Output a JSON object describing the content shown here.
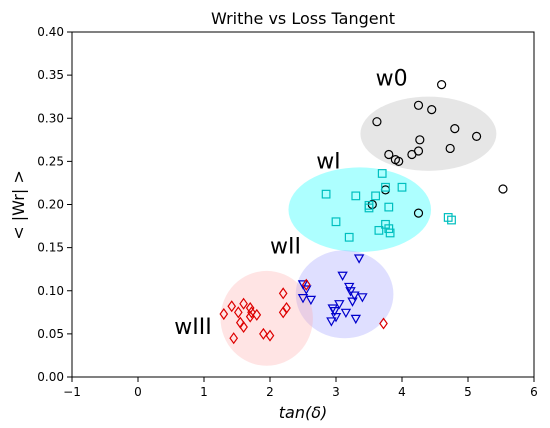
{
  "chart_data": {
    "type": "scatter",
    "title": "Writhe vs Loss Tangent",
    "xlabel": "tan(δ)",
    "ylabel": "< |Wr| >",
    "xlim": [
      -1,
      6
    ],
    "ylim": [
      0.0,
      0.4
    ],
    "xticks": [
      "−1",
      "0",
      "1",
      "2",
      "3",
      "4",
      "5",
      "6"
    ],
    "yticks": [
      "0.00",
      "0.05",
      "0.10",
      "0.15",
      "0.20",
      "0.25",
      "0.30",
      "0.35",
      "0.40"
    ],
    "grid": false,
    "series": [
      {
        "label": "w0",
        "marker": "circle",
        "color": "#000000",
        "region_color": "#b0b0b0",
        "region": {
          "cx": 4.4,
          "cy": 0.282,
          "rx": 1.03,
          "ry": 0.043
        },
        "label_pos": {
          "x": 3.6,
          "y": 0.338
        },
        "x": [
          4.6,
          4.25,
          4.45,
          3.62,
          4.8,
          5.13,
          4.27,
          4.73,
          3.8,
          3.9,
          3.95,
          4.15,
          4.25,
          5.53,
          3.75,
          3.55,
          4.25
        ],
        "y": [
          0.339,
          0.315,
          0.31,
          0.296,
          0.288,
          0.279,
          0.275,
          0.265,
          0.258,
          0.252,
          0.25,
          0.258,
          0.262,
          0.218,
          0.217,
          0.2,
          0.19
        ]
      },
      {
        "label": "wI",
        "marker": "square",
        "color": "#00bfbf",
        "region_color": "#00ffff",
        "region": {
          "cx": 3.36,
          "cy": 0.194,
          "rx": 1.08,
          "ry": 0.049
        },
        "label_pos": {
          "x": 2.7,
          "y": 0.242
        },
        "x": [
          3.7,
          3.75,
          2.85,
          3.3,
          3.6,
          4.0,
          3.5,
          3.8,
          3.5,
          3.0,
          4.7,
          4.75,
          3.75,
          3.65,
          3.8,
          3.82,
          3.2
        ],
        "y": [
          0.236,
          0.22,
          0.212,
          0.21,
          0.21,
          0.22,
          0.199,
          0.197,
          0.196,
          0.18,
          0.185,
          0.182,
          0.177,
          0.17,
          0.172,
          0.167,
          0.162
        ]
      },
      {
        "label": "wII",
        "marker": "triangle-down",
        "color": "#0000cc",
        "region_color": "#9b9bff",
        "region": {
          "cx": 3.13,
          "cy": 0.096,
          "rx": 0.74,
          "ry": 0.051
        },
        "label_pos": {
          "x": 2.0,
          "y": 0.143
        },
        "x": [
          3.35,
          3.1,
          2.5,
          2.55,
          3.2,
          3.22,
          3.28,
          2.5,
          2.62,
          3.4,
          3.05,
          3.25,
          2.95,
          2.98,
          3.15,
          3.3,
          3.0,
          2.93
        ],
        "y": [
          0.138,
          0.118,
          0.108,
          0.102,
          0.105,
          0.1,
          0.095,
          0.092,
          0.09,
          0.093,
          0.085,
          0.088,
          0.08,
          0.077,
          0.075,
          0.068,
          0.07,
          0.065
        ]
      },
      {
        "label": "wIII",
        "marker": "diamond",
        "color": "#dd0000",
        "region_color": "#ffaaaa",
        "region": {
          "cx": 1.95,
          "cy": 0.068,
          "rx": 0.7,
          "ry": 0.055
        },
        "label_pos": {
          "x": 0.55,
          "y": 0.05
        },
        "x": [
          2.55,
          2.2,
          1.6,
          1.42,
          1.3,
          1.7,
          1.72,
          2.25,
          2.2,
          1.52,
          1.7,
          1.8,
          1.55,
          1.6,
          2.0,
          1.9,
          1.45,
          3.72
        ],
        "y": [
          0.107,
          0.097,
          0.085,
          0.082,
          0.073,
          0.08,
          0.075,
          0.08,
          0.075,
          0.075,
          0.07,
          0.072,
          0.063,
          0.058,
          0.048,
          0.05,
          0.045,
          0.062
        ]
      }
    ]
  }
}
